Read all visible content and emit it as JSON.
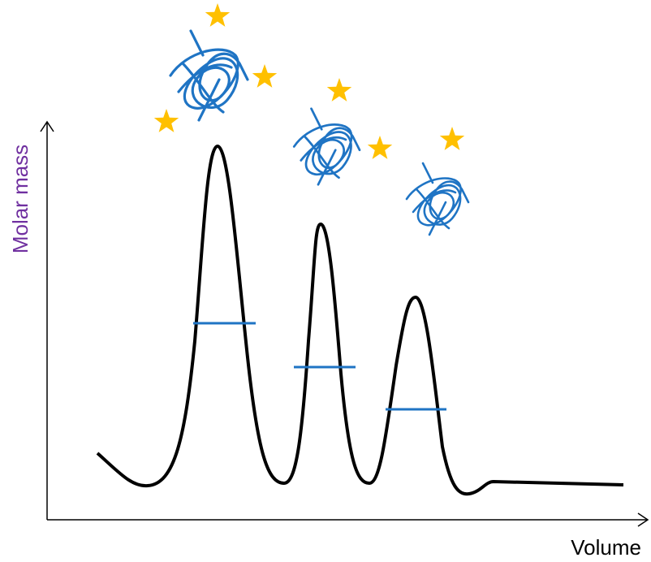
{
  "axes": {
    "y_label": "Molar mass",
    "x_label": "Volume"
  }
}
